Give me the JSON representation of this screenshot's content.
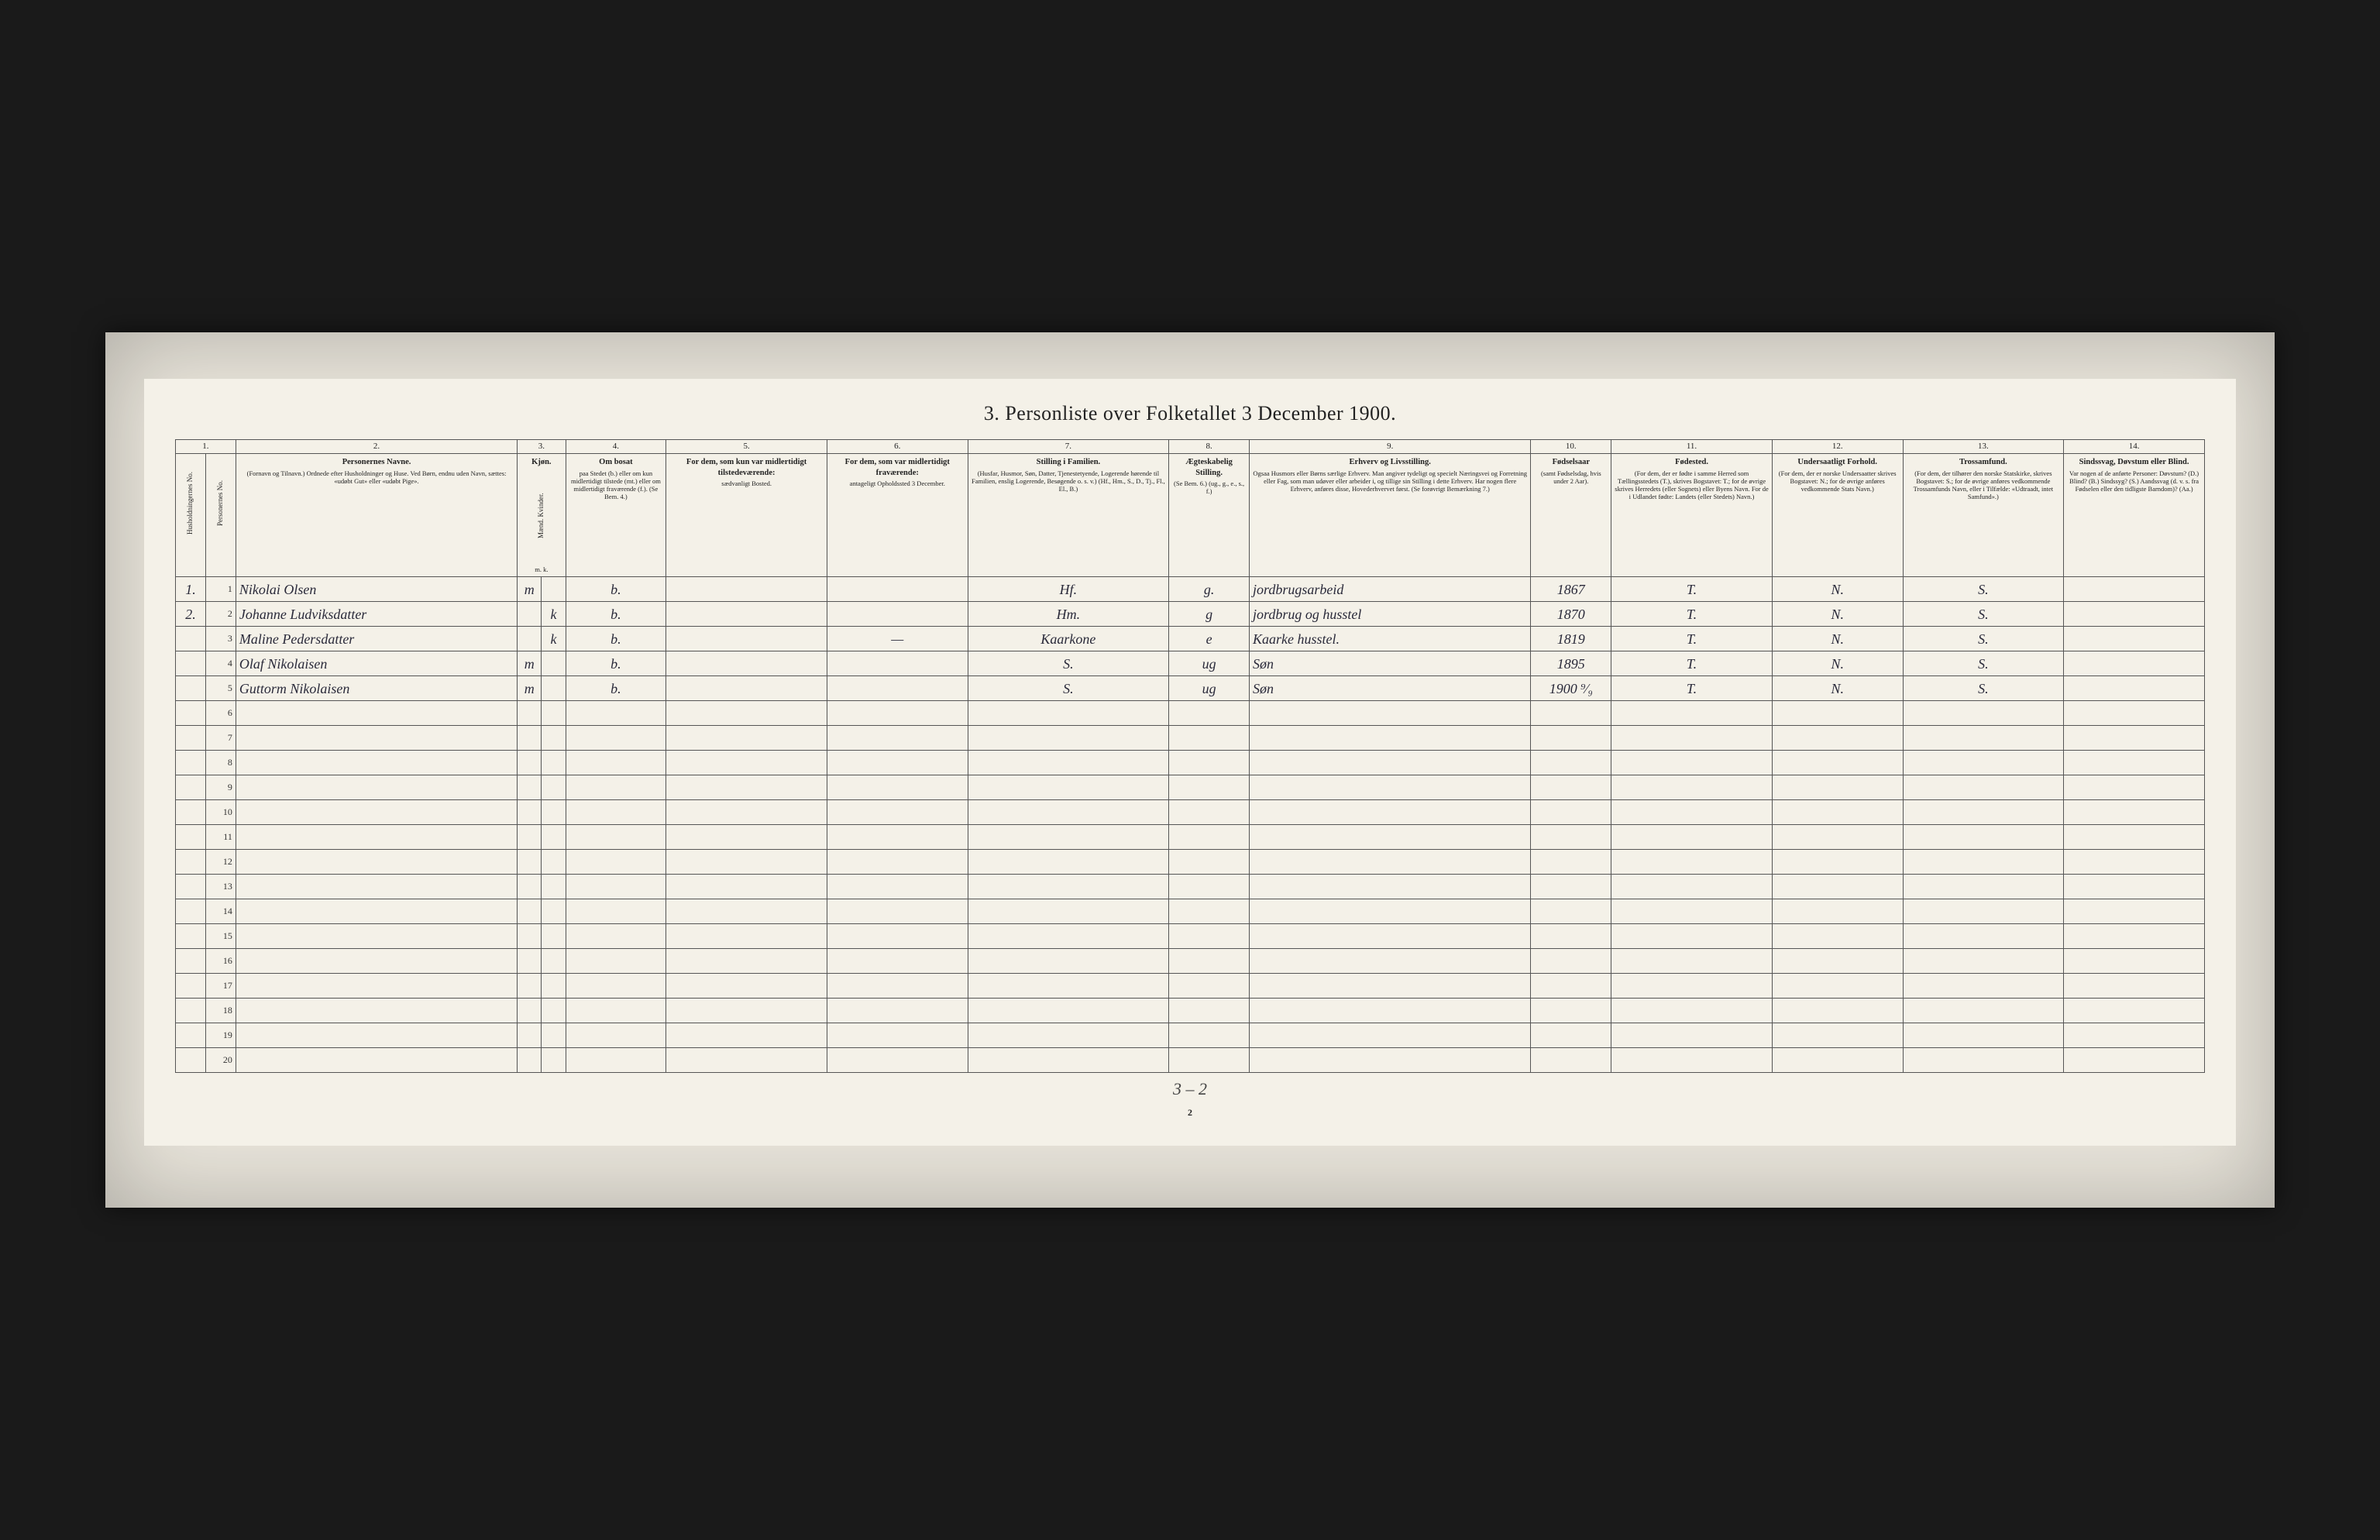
{
  "title": "3. Personliste over Folketallet 3 December 1900.",
  "page_number": "2",
  "footer_note": "3 – 2",
  "colors": {
    "scan_bg": "#1a1a1a",
    "frame_bg": "#e8e4da",
    "page_bg": "#f4f1e8",
    "border": "#555555",
    "text": "#222222",
    "handwriting": "#2a2a3a"
  },
  "column_numbers": [
    "1.",
    "2.",
    "3.",
    "4.",
    "5.",
    "6.",
    "7.",
    "8.",
    "9.",
    "10.",
    "11.",
    "12.",
    "13.",
    "14."
  ],
  "headers": {
    "c1a": "Husholdningernes No.",
    "c1b": "Personernes No.",
    "c2_title": "Personernes Navne.",
    "c2_sub": "(Fornavn og Tilnavn.) Ordnede efter Husholdninger og Huse. Ved Børn, endnu uden Navn, sættes: «udøbt Gut» eller «udøbt Pige».",
    "c3_title": "Kjøn.",
    "c3_sub": "Mænd. Kvinder.",
    "c3_mk": "m.   k.",
    "c4_title": "Om bosat",
    "c4_sub": "paa Stedet (b.) eller om kun midlertidigt tilstede (mt.) eller om midlertidigt fraværende (f.). (Se Bem. 4.)",
    "c5_title": "For dem, som kun var midlertidigt tilstedeværende:",
    "c5_sub": "sædvanligt Bosted.",
    "c6_title": "For dem, som var midlertidigt fraværende:",
    "c6_sub": "antageligt Opholdssted 3 December.",
    "c7_title": "Stilling i Familien.",
    "c7_sub": "(Husfar, Husmor, Søn, Datter, Tjenestetyende, Logerende hørende til Familien, enslig Logerende, Besøgende o. s. v.) (Hf., Hm., S., D., Tj., Fl., El., B.)",
    "c8_title": "Ægteskabelig Stilling.",
    "c8_sub": "(Se Bem. 6.) (ug., g., e., s., f.)",
    "c9_title": "Erhverv og Livsstilling.",
    "c9_sub": "Ogsaa Husmors eller Børns særlige Erhverv. Man angiver tydeligt og specielt Næringsvei og Forretning eller Fag, som man udøver eller arbeider i, og tillige sin Stilling i dette Erhverv. Har nogen flere Erhverv, anføres disse, Hovederhvervet først. (Se forøvrigt Bemærkning 7.)",
    "c10_title": "Fødselsaar",
    "c10_sub": "(samt Fødselsdag, hvis under 2 Aar).",
    "c11_title": "Fødested.",
    "c11_sub": "(For dem, der er fødte i samme Herred som Tællingsstedets (T.), skrives Bogstavet: T.; for de øvrige skrives Herredets (eller Sognets) eller Byens Navn. For de i Udlandet fødte: Landets (eller Stedets) Navn.)",
    "c12_title": "Undersaatligt Forhold.",
    "c12_sub": "(For dem, der er norske Undersaatter skrives Bogstavet: N.; for de øvrige anføres vedkommende Stats Navn.)",
    "c13_title": "Trossamfund.",
    "c13_sub": "(For dem, der tilhører den norske Statskirke, skrives Bogstavet: S.; for de øvrige anføres vedkommende Trossamfunds Navn, eller i Tilfælde: «Udtraadt, intet Samfund».)",
    "c14_title": "Sindssvag, Døvstum eller Blind.",
    "c14_sub": "Var nogen af de anførte Personer: Døvstum? (D.) Blind? (B.) Sindssyg? (S.) Aandssvag (d. v. s. fra Fødselen eller den tidligste Barndom)? (Aa.)"
  },
  "rows": [
    {
      "hh": "1.",
      "pn": "1",
      "name": "Nikolai Olsen",
      "sex_m": "m",
      "sex_k": "",
      "c4": "b.",
      "c5": "",
      "c6": "",
      "c7": "Hf.",
      "c8": "g.",
      "c9": "jordbrugsarbeid",
      "c10": "1867",
      "c11": "T.",
      "c12": "N.",
      "c13": "S.",
      "c14": ""
    },
    {
      "hh": "2.",
      "pn": "2",
      "name": "Johanne Ludviksdatter",
      "sex_m": "",
      "sex_k": "k",
      "c4": "b.",
      "c5": "",
      "c6": "",
      "c7": "Hm.",
      "c8": "g",
      "c9": "jordbrug og husstel",
      "c10": "1870",
      "c11": "T.",
      "c12": "N.",
      "c13": "S.",
      "c14": ""
    },
    {
      "hh": "",
      "pn": "3",
      "name": "Maline Pedersdatter",
      "sex_m": "",
      "sex_k": "k",
      "c4": "b.",
      "c5": "",
      "c6": "—",
      "c7": "Kaarkone",
      "c8": "e",
      "c9": "Kaarke husstel.",
      "c10": "1819",
      "c11": "T.",
      "c12": "N.",
      "c13": "S.",
      "c14": ""
    },
    {
      "hh": "",
      "pn": "4",
      "name": "Olaf Nikolaisen",
      "sex_m": "m",
      "sex_k": "",
      "c4": "b.",
      "c5": "",
      "c6": "",
      "c7": "S.",
      "c8": "ug",
      "c9": "Søn",
      "c10": "1895",
      "c11": "T.",
      "c12": "N.",
      "c13": "S.",
      "c14": ""
    },
    {
      "hh": "",
      "pn": "5",
      "name": "Guttorm Nikolaisen",
      "sex_m": "m",
      "sex_k": "",
      "c4": "b.",
      "c5": "",
      "c6": "",
      "c7": "S.",
      "c8": "ug",
      "c9": "Søn",
      "c10": "1900 ⁹⁄₉",
      "c11": "T.",
      "c12": "N.",
      "c13": "S.",
      "c14": ""
    }
  ],
  "empty_row_count": 15,
  "total_rows": 20
}
